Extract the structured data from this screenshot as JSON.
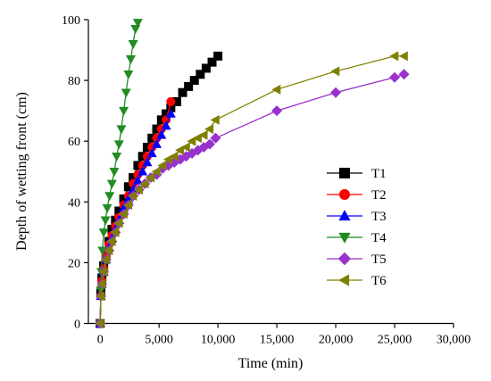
{
  "chart_data": {
    "type": "line",
    "title": "",
    "xlabel": "Time (min)",
    "ylabel": "Depth of wetting front (cm)",
    "xlim": [
      -1000,
      30000
    ],
    "ylim": [
      0,
      100
    ],
    "xticks": [
      0,
      5000,
      10000,
      15000,
      20000,
      25000,
      30000
    ],
    "xtick_labels": [
      "0",
      "5,000",
      "10,000",
      "15,000",
      "20,000",
      "25,000",
      "30,000"
    ],
    "yticks": [
      0,
      20,
      40,
      60,
      80,
      100
    ],
    "ytick_labels": [
      "0",
      "20",
      "40",
      "60",
      "80",
      "100"
    ],
    "grid": false,
    "legend_position": "right",
    "series": [
      {
        "name": "T1",
        "color": "#000000",
        "marker": "square",
        "x": [
          0,
          60,
          150,
          300,
          500,
          750,
          1000,
          1300,
          1600,
          2000,
          2400,
          2800,
          3200,
          3600,
          4000,
          4400,
          4800,
          5200,
          5600,
          6000,
          6500,
          7000,
          7500,
          8000,
          8500,
          9000,
          9500,
          10000
        ],
        "y": [
          0,
          10,
          15,
          19,
          23,
          27,
          31,
          34,
          37,
          41,
          45,
          48,
          52,
          55,
          58,
          61,
          64,
          67,
          69,
          71,
          73,
          76,
          78,
          80,
          82,
          84,
          86,
          88
        ]
      },
      {
        "name": "T2",
        "color": "#ff0000",
        "marker": "circle",
        "x": [
          0,
          60,
          150,
          300,
          500,
          750,
          1000,
          1300,
          1600,
          2000,
          2400,
          2800,
          3200,
          3600,
          4000,
          4400,
          4800,
          5200,
          5600,
          6000
        ],
        "y": [
          0,
          9,
          14,
          18,
          22,
          26,
          29,
          32,
          35,
          39,
          42,
          46,
          49,
          52,
          55,
          58,
          61,
          64,
          67,
          73
        ]
      },
      {
        "name": "T3",
        "color": "#0000ff",
        "marker": "triangle-up",
        "x": [
          0,
          60,
          150,
          300,
          500,
          750,
          1000,
          1300,
          1600,
          2000,
          2400,
          2800,
          3200,
          3600,
          4000,
          4400,
          4800,
          5200,
          5600,
          6000
        ],
        "y": [
          0,
          9,
          13,
          17,
          21,
          25,
          28,
          31,
          34,
          38,
          41,
          44,
          47,
          50,
          53,
          56,
          59,
          62,
          65,
          69
        ]
      },
      {
        "name": "T4",
        "color": "#228b22",
        "marker": "triangle-down",
        "x": [
          0,
          50,
          100,
          200,
          300,
          450,
          600,
          800,
          1000,
          1200,
          1400,
          1600,
          1800,
          2000,
          2200,
          2400,
          2600,
          2800,
          3000,
          3200
        ],
        "y": [
          0,
          11,
          17,
          24,
          30,
          34,
          38,
          42,
          46,
          50,
          55,
          59,
          64,
          70,
          76,
          82,
          87,
          92,
          97,
          99
        ]
      },
      {
        "name": "T5",
        "color": "#9a32cd",
        "marker": "diamond",
        "x": [
          0,
          60,
          150,
          300,
          500,
          750,
          1000,
          1300,
          1600,
          2000,
          2400,
          2800,
          3300,
          3800,
          4300,
          4800,
          5300,
          5800,
          6300,
          6800,
          7300,
          7800,
          8300,
          8800,
          9300,
          9800,
          15000,
          20000,
          25000,
          25800
        ],
        "y": [
          0,
          9,
          13,
          17,
          21,
          24,
          27,
          30,
          33,
          36,
          39,
          42,
          44,
          46,
          48,
          49,
          51,
          52,
          53,
          54,
          55,
          56,
          57,
          58,
          59,
          61,
          70,
          76,
          81,
          82
        ]
      },
      {
        "name": "T6",
        "color": "#808000",
        "marker": "triangle-left",
        "x": [
          0,
          60,
          150,
          300,
          500,
          750,
          1000,
          1300,
          1600,
          2000,
          2400,
          2800,
          3300,
          3800,
          4300,
          4800,
          5300,
          5800,
          6300,
          6800,
          7300,
          7800,
          8300,
          8800,
          9300,
          9800,
          15000,
          20000,
          25000,
          25800
        ],
        "y": [
          0,
          9,
          13,
          17,
          21,
          24,
          27,
          30,
          33,
          36,
          39,
          42,
          44,
          46,
          48,
          50,
          52,
          54,
          55,
          57,
          58,
          60,
          61,
          62,
          64,
          67,
          77,
          83,
          88,
          88
        ]
      }
    ]
  }
}
